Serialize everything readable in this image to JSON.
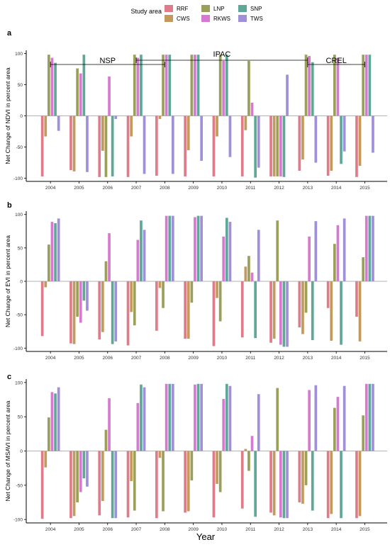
{
  "legend": {
    "title": "Study area",
    "items": [
      {
        "name": "RRF",
        "color": "#E07B8A"
      },
      {
        "name": "CWS",
        "color": "#C49A5C"
      },
      {
        "name": "LNP",
        "color": "#9AA05A"
      },
      {
        "name": "RKWS",
        "color": "#D879D1"
      },
      {
        "name": "SNP",
        "color": "#5FA898"
      },
      {
        "name": "TWS",
        "color": "#A08FD9"
      }
    ]
  },
  "xlabel": "Year",
  "chart_data": [
    {
      "type": "bar",
      "panel_label": "a",
      "ylabel": "Net Change of NDVI in percent area",
      "categories": [
        "2004",
        "2005",
        "2006",
        "2007",
        "2008",
        "2009",
        "2010",
        "2011",
        "2012",
        "2013",
        "2014",
        "2015"
      ],
      "ylim": [
        -105,
        105
      ],
      "yticks": [
        -100,
        -50,
        0,
        50,
        100
      ],
      "series": [
        {
          "name": "RRF",
          "values": [
            -97,
            -87,
            -98,
            -98,
            -96,
            -97,
            -97,
            -97,
            -97,
            -88,
            -96,
            -98
          ]
        },
        {
          "name": "CWS",
          "values": [
            -33,
            -89,
            -56,
            -33,
            -5,
            -55,
            -33,
            -23,
            -97,
            -70,
            -88,
            -80
          ]
        },
        {
          "name": "LNP",
          "values": [
            98,
            76,
            -98,
            98,
            98,
            98,
            98,
            88,
            -97,
            98,
            98,
            98
          ]
        },
        {
          "name": "RKWS",
          "values": [
            93,
            68,
            63,
            93,
            98,
            98,
            88,
            21,
            -97,
            96,
            93,
            98
          ]
        },
        {
          "name": "SNP",
          "values": [
            85,
            98,
            -97,
            98,
            98,
            98,
            98,
            -99,
            -98,
            86,
            -77,
            98
          ]
        },
        {
          "name": "TWS",
          "values": [
            -24,
            -90,
            -5,
            -93,
            -93,
            -72,
            -66,
            -83,
            66,
            -75,
            -57,
            -59
          ]
        }
      ],
      "annotations": [
        {
          "label": "NSP",
          "from": "2004",
          "to": "2008"
        },
        {
          "label": "IPAC",
          "from": "2007",
          "to": "2013"
        },
        {
          "label": "CREL",
          "from": "2013",
          "to": "2015"
        }
      ]
    },
    {
      "type": "bar",
      "panel_label": "b",
      "ylabel": "Net Change of EVI in percent area",
      "categories": [
        "2004",
        "2005",
        "2006",
        "2007",
        "2008",
        "2009",
        "2010",
        "2011",
        "2012",
        "2013",
        "2014",
        "2015"
      ],
      "ylim": [
        -105,
        105
      ],
      "yticks": [
        -100,
        -50,
        0,
        50,
        100
      ],
      "series": [
        {
          "name": "RRF",
          "values": [
            -82,
            -93,
            -87,
            -96,
            -74,
            -86,
            -97,
            -84,
            -92,
            -69,
            -40,
            -53
          ]
        },
        {
          "name": "CWS",
          "values": [
            -9,
            -94,
            -76,
            -46,
            -10,
            -86,
            -25,
            22,
            -86,
            -79,
            -89,
            -90
          ]
        },
        {
          "name": "LNP",
          "values": [
            55,
            -53,
            30,
            -66,
            -40,
            -32,
            -60,
            38,
            91,
            -47,
            56,
            36
          ]
        },
        {
          "name": "RKWS",
          "values": [
            89,
            -62,
            72,
            62,
            98,
            96,
            67,
            13,
            -95,
            67,
            84,
            98
          ]
        },
        {
          "name": "SNP",
          "values": [
            87,
            -29,
            -94,
            91,
            98,
            98,
            95,
            -85,
            -98,
            -88,
            -95,
            98
          ]
        },
        {
          "name": "TWS",
          "values": [
            94,
            -44,
            -90,
            77,
            98,
            98,
            89,
            77,
            -98,
            90,
            94,
            98
          ]
        }
      ]
    },
    {
      "type": "bar",
      "panel_label": "c",
      "ylabel": "Net Change of MSAVI in percent area",
      "categories": [
        "2004",
        "2005",
        "2006",
        "2007",
        "2008",
        "2009",
        "2010",
        "2011",
        "2012",
        "2013",
        "2014",
        "2015"
      ],
      "ylim": [
        -105,
        105
      ],
      "yticks": [
        -100,
        -50,
        0,
        50,
        100
      ],
      "series": [
        {
          "name": "RRF",
          "values": [
            -99,
            -98,
            -94,
            -97,
            -98,
            -90,
            -97,
            -84,
            -90,
            -75,
            -98,
            -98
          ]
        },
        {
          "name": "CWS",
          "values": [
            -24,
            -95,
            -73,
            -44,
            -10,
            -88,
            -48,
            3,
            -94,
            -77,
            -92,
            -95
          ]
        },
        {
          "name": "LNP",
          "values": [
            49,
            -75,
            31,
            -87,
            -88,
            -43,
            -60,
            -29,
            92,
            -50,
            63,
            52
          ]
        },
        {
          "name": "RKWS",
          "values": [
            86,
            -60,
            77,
            70,
            98,
            97,
            76,
            22,
            -97,
            89,
            79,
            98
          ]
        },
        {
          "name": "SNP",
          "values": [
            84,
            -40,
            -98,
            97,
            98,
            98,
            98,
            -96,
            -98,
            -87,
            -98,
            98
          ]
        },
        {
          "name": "TWS",
          "values": [
            93,
            -52,
            -98,
            93,
            98,
            98,
            95,
            83,
            -98,
            96,
            95,
            98
          ]
        }
      ]
    }
  ]
}
